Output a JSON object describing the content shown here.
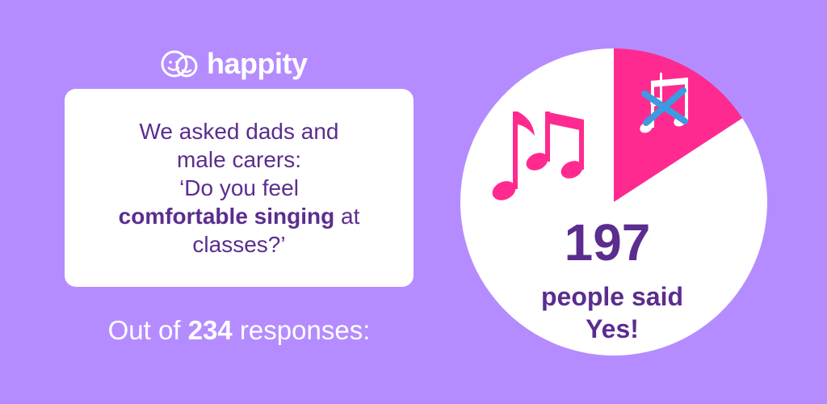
{
  "logo": {
    "text": "happity"
  },
  "question": {
    "line1": "We asked dads and",
    "line2": "male carers:",
    "line3": "‘Do you feel",
    "bold": "comfortable singing",
    "after_bold": " at",
    "line5": "classes?’"
  },
  "responses": {
    "prefix": "Out of ",
    "total": "234",
    "suffix": " responses:"
  },
  "result": {
    "count": "197",
    "line1": "people said",
    "line2": "Yes!"
  },
  "colors": {
    "background": "#b48cff",
    "yes": "#ffffff",
    "no": "#ff2a8f",
    "text": "#5b2d8e",
    "cross": "#3a9be0"
  },
  "chart_data": {
    "type": "pie",
    "total": 234,
    "slices": [
      {
        "label": "Yes",
        "value": 197,
        "color": "#ffffff"
      },
      {
        "label": "No",
        "value": 37,
        "color": "#ff2a8f"
      }
    ]
  }
}
